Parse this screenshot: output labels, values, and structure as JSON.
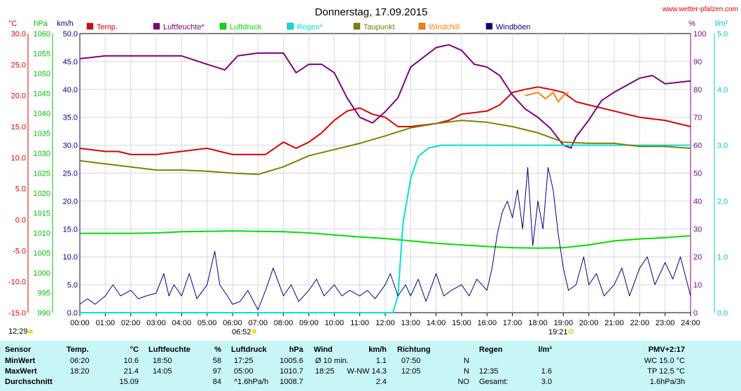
{
  "title": "Donnerstag, 17.09.2015",
  "website": "www.wetter-pfalzen.com",
  "axis_units": {
    "temp": "°C",
    "pressure": "hPa",
    "wind": "km/h",
    "humidity": "%",
    "rain": "l/m²"
  },
  "legend": [
    {
      "label": "Temp.",
      "color": "#e00000"
    },
    {
      "label": "Luftfeuchte*",
      "color": "#800080"
    },
    {
      "label": "Luftdruck",
      "color": "#00e000"
    },
    {
      "label": "Regen*",
      "color": "#00e0e0"
    },
    {
      "label": "Taupunkt",
      "color": "#808000"
    },
    {
      "label": "Windchill",
      "color": "#ff8000"
    },
    {
      "label": "Windböen",
      "color": "#000080"
    }
  ],
  "markers": {
    "sunrise": "06:52",
    "sunset": "19:21",
    "left_time": "12:29"
  },
  "chart_data": {
    "type": "line",
    "title": "Donnerstag, 17.09.2015",
    "x_ticks": [
      "00:00",
      "01:00",
      "02:00",
      "03:00",
      "04:00",
      "05:00",
      "06:00",
      "07:00",
      "08:00",
      "09:00",
      "10:00",
      "11:00",
      "12:00",
      "13:00",
      "14:00",
      "15:00",
      "16:00",
      "17:00",
      "18:00",
      "19:00",
      "20:00",
      "21:00",
      "22:00",
      "23:00",
      "24:00"
    ],
    "axes": {
      "temp": {
        "ticks": [
          "30.0",
          "25.0",
          "20.0",
          "15.0",
          "10.0",
          "5.0",
          "0.0",
          "-5.0",
          "-10.0",
          "-15.0"
        ],
        "range": [
          -15,
          30
        ]
      },
      "pressure": {
        "ticks": [
          "1060",
          "1055",
          "1050",
          "1045",
          "1040",
          "1035",
          "1030",
          "1025",
          "1020",
          "1015",
          "1010",
          "1005",
          "1000",
          "995",
          "990"
        ],
        "range": [
          990,
          1060
        ]
      },
      "wind": {
        "ticks": [
          "50.0",
          "45.0",
          "40.0",
          "35.0",
          "30.0",
          "25.0",
          "20.0",
          "15.0",
          "10.0",
          "5.0",
          "0.0"
        ],
        "range": [
          0,
          50
        ]
      },
      "humidity": {
        "ticks": [
          "100",
          "90",
          "80",
          "70",
          "60",
          "50",
          "40",
          "30",
          "20",
          "10",
          "0"
        ],
        "range": [
          0,
          100
        ]
      },
      "rain": {
        "ticks": [
          "5.0",
          "4.0",
          "3.0",
          "2.0",
          "1.0",
          "0.0"
        ],
        "range": [
          0,
          5
        ]
      }
    },
    "series": [
      {
        "name": "Temp.",
        "axis": "temp",
        "color": "#e00000",
        "x": [
          0,
          1,
          1.5,
          2,
          2.5,
          3,
          4,
          5,
          5.5,
          6,
          7,
          7.3,
          8,
          8.5,
          9,
          9.5,
          10,
          10.5,
          11,
          11.5,
          12,
          12.5,
          13,
          14,
          14.5,
          15,
          16,
          16.5,
          17,
          17.5,
          18,
          18.5,
          19,
          19.5,
          20,
          21,
          21.5,
          22,
          23,
          24
        ],
        "y": [
          11.5,
          11,
          11,
          10.5,
          10.5,
          10.5,
          11,
          11.5,
          11,
          10.5,
          10.5,
          10.5,
          12.5,
          11.5,
          12.5,
          14,
          16,
          17.5,
          18,
          17,
          16.5,
          15,
          15,
          15.5,
          16,
          17,
          17.5,
          18.5,
          20.5,
          21,
          21.4,
          21,
          20.5,
          19,
          18.5,
          17.5,
          17,
          16.5,
          16,
          15
        ]
      },
      {
        "name": "Luftfeuchte*",
        "axis": "humidity",
        "color": "#800080",
        "x": [
          0,
          1,
          2,
          3,
          4,
          5,
          5.7,
          6.2,
          7,
          8,
          8.5,
          9,
          9.5,
          10,
          10.5,
          11,
          11.5,
          12,
          12.5,
          13,
          14,
          14.5,
          15,
          15.5,
          16,
          16.5,
          17,
          17.5,
          18,
          18.5,
          19,
          19.3,
          19.5,
          20,
          20.5,
          21,
          22,
          22.5,
          23,
          24
        ],
        "y": [
          91,
          92,
          92,
          92,
          92,
          89,
          87,
          92,
          93,
          93,
          86,
          89,
          89,
          86,
          77,
          70,
          68,
          72,
          77,
          88,
          95,
          96,
          94,
          89,
          88,
          85,
          78,
          73,
          70,
          66,
          60,
          59,
          63,
          69,
          76,
          79,
          84,
          85,
          82,
          83
        ]
      },
      {
        "name": "Luftdruck",
        "axis": "pressure",
        "color": "#00e000",
        "x": [
          0,
          2,
          3,
          4,
          5,
          6,
          7,
          8,
          9,
          10,
          11,
          12,
          13,
          14,
          15,
          16,
          17,
          18,
          19,
          20,
          21,
          22,
          23,
          24
        ],
        "y": [
          1009.9,
          1009.9,
          1010,
          1010.3,
          1010.4,
          1010.5,
          1010.4,
          1010.3,
          1010,
          1009.5,
          1009,
          1008.6,
          1008,
          1007.4,
          1007,
          1006.6,
          1006.3,
          1006.2,
          1006.3,
          1007,
          1008,
          1008.5,
          1008.8,
          1009.3
        ]
      },
      {
        "name": "Regen*",
        "axis": "rain",
        "color": "#00e0e0",
        "x": [
          0,
          12.3,
          12.5,
          12.7,
          13.0,
          13.3,
          13.7,
          14.2,
          24
        ],
        "y": [
          0,
          0,
          0.3,
          1.6,
          2.4,
          2.8,
          2.95,
          3.0,
          3.0
        ]
      },
      {
        "name": "Taupunkt",
        "axis": "temp",
        "color": "#808000",
        "x": [
          0,
          1,
          2,
          3,
          4,
          5,
          6,
          7,
          8,
          9,
          10,
          11,
          12,
          13,
          14,
          15,
          16,
          17,
          18,
          19,
          20,
          21,
          22,
          23,
          24
        ],
        "y": [
          9.5,
          9,
          8.5,
          8,
          8,
          7.8,
          7.5,
          7.3,
          8.5,
          10.3,
          11.3,
          12.3,
          13.5,
          14.8,
          15.5,
          16,
          15.7,
          15,
          14,
          12.5,
          12.3,
          12.3,
          11.8,
          11.8,
          11.5
        ]
      },
      {
        "name": "Windchill",
        "axis": "temp",
        "color": "#ff8000",
        "x": [
          17.5,
          18,
          18.3,
          18.6,
          18.8,
          19,
          19.2
        ],
        "y": [
          20,
          20.5,
          19.5,
          20.5,
          19,
          20,
          20.5
        ]
      },
      {
        "name": "Windböen",
        "axis": "wind",
        "color": "#000080",
        "x": [
          0,
          0.3,
          0.6,
          1,
          1.3,
          1.6,
          2,
          2.3,
          2.6,
          3,
          3.3,
          3.5,
          3.7,
          4,
          4.3,
          4.6,
          5,
          5.3,
          5.5,
          5.8,
          6,
          6.3,
          6.6,
          7,
          7.3,
          7.6,
          8,
          8.3,
          8.6,
          9,
          9.3,
          9.6,
          10,
          10.3,
          10.6,
          11,
          11.3,
          11.6,
          12,
          12.2,
          12.5,
          12.8,
          13,
          13.3,
          13.6,
          14,
          14.3,
          14.6,
          15,
          15.3,
          15.6,
          16,
          16.2,
          16.4,
          16.6,
          16.8,
          17,
          17.2,
          17.4,
          17.6,
          17.8,
          18,
          18.2,
          18.4,
          18.6,
          18.8,
          19,
          19.2,
          19.5,
          19.8,
          20,
          20.3,
          20.6,
          21,
          21.3,
          21.6,
          22,
          22.3,
          22.6,
          23,
          23.3,
          23.6,
          24
        ],
        "y": [
          1.5,
          2.5,
          1.5,
          3,
          5,
          3,
          4,
          2.5,
          3,
          3.5,
          7,
          3,
          5,
          3,
          7,
          2.5,
          5,
          11,
          5,
          3,
          1.5,
          2,
          4,
          0.5,
          4,
          8,
          3,
          5,
          2,
          4,
          6,
          3,
          5,
          3,
          4,
          3,
          4,
          2.5,
          5,
          7,
          3,
          5,
          3,
          6,
          2,
          7,
          3,
          4,
          5,
          3,
          6,
          4,
          8,
          14,
          18,
          20,
          17,
          22,
          15,
          26,
          12,
          20,
          15,
          26,
          22,
          14,
          8,
          4,
          5,
          10,
          5,
          7,
          3,
          5,
          8,
          3,
          8,
          10,
          5,
          9,
          6,
          10,
          3
        ]
      }
    ]
  },
  "table": {
    "headers": {
      "sensor": "Sensor",
      "temp": "Temp.",
      "temp_unit": "°C",
      "hum": "Luftfeuchte",
      "hum_unit": "%",
      "press": "Luftdruck",
      "press_unit": "hPa",
      "wind": "Wind",
      "wind_unit": "km/h",
      "dir": "Richtung",
      "rain": "Regen",
      "rain_unit": "l/m²",
      "pmv": "PMV+2:17"
    },
    "rows": [
      {
        "label": "MinWert",
        "t_time": "06:20",
        "t_val": "10.6",
        "h_time": "18:50",
        "h_val": "58",
        "p_time": "17:25",
        "p_val": "1005.6",
        "w_time": "Ø 10 min.",
        "w_val": "1.1",
        "d_time": "07:50",
        "d_val": "N",
        "r_time": "",
        "r_val": "",
        "extra": "WC 15.0 °C"
      },
      {
        "label": "MaxWert",
        "t_time": "18:20",
        "t_val": "21.4",
        "h_time": "14:05",
        "h_val": "97",
        "p_time": "05:00",
        "p_val": "1010.7",
        "w_time": "18:25",
        "w_val": "W-NW 14.3",
        "d_time": "12:05",
        "d_val": "N",
        "r_time": "12:35",
        "r_val": "1.6",
        "extra": "TP 12.5 °C"
      },
      {
        "label": "Durchschnitt",
        "t_time": "",
        "t_val": "15.09",
        "h_time": "",
        "h_val": "84",
        "p_time": "^1.6hPa/h",
        "p_val": "1008.7",
        "w_time": "",
        "w_val": "2.4",
        "d_time": "",
        "d_val": "NO",
        "r_time": "Gesamt:",
        "r_val": "3.0",
        "extra": "1.6hPa/3h"
      }
    ]
  }
}
